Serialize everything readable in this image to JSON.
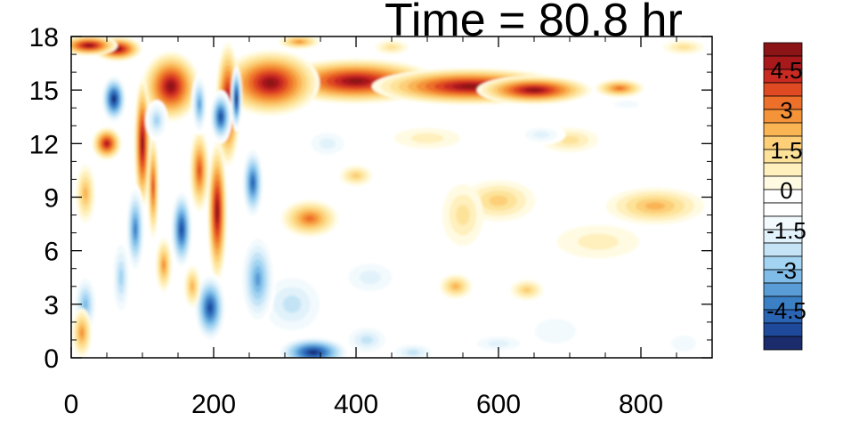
{
  "chart_data": {
    "type": "heatmap",
    "title": "Time = 80.8 hr",
    "xlabel": "",
    "ylabel": "",
    "xlim": [
      0,
      900
    ],
    "ylim": [
      0,
      18
    ],
    "x_ticks": [
      0,
      200,
      400,
      600,
      800
    ],
    "y_ticks": [
      0,
      3,
      6,
      9,
      12,
      15,
      18
    ],
    "x_tick_labels": [
      "0",
      "200",
      "400",
      "600",
      "800"
    ],
    "y_tick_labels": [
      "0",
      "3",
      "6",
      "9",
      "12",
      "15",
      "18"
    ],
    "colorbar": {
      "levels": [
        -5.5,
        -5,
        -4.5,
        -4,
        -3.5,
        -3,
        -2.5,
        -2,
        -1.5,
        -1,
        -0.5,
        0,
        0.5,
        1,
        1.5,
        2,
        2.5,
        3,
        3.5,
        4,
        4.5,
        5,
        5.5
      ],
      "colors": [
        "#1a2c6b",
        "#1f4a9c",
        "#2a64b4",
        "#3b7fc4",
        "#5a9cd6",
        "#7fbde8",
        "#a3d4f2",
        "#c4e4f6",
        "#e2f2fb",
        "#f3fafd",
        "#ffffff",
        "#ffffff",
        "#fffbe3",
        "#fff0be",
        "#fde39a",
        "#fccf78",
        "#f9b454",
        "#f49338",
        "#ec7029",
        "#df4a22",
        "#c92a22",
        "#a8191c",
        "#8a1416"
      ],
      "labels": [
        "4.5",
        "3",
        "1.5",
        "0",
        "-1.5",
        "-3",
        "-4.5"
      ],
      "label_values": [
        4.5,
        3,
        1.5,
        0,
        -1.5,
        -3,
        -4.5
      ]
    },
    "features": [
      {
        "value": 5.5,
        "x": 650,
        "y": 15,
        "sx": 70,
        "sy": 0.7
      },
      {
        "value": 5.5,
        "x": 560,
        "y": 15.2,
        "sx": 120,
        "sy": 0.9
      },
      {
        "value": 5.5,
        "x": 400,
        "y": 15.5,
        "sx": 100,
        "sy": 1.1
      },
      {
        "value": 5.5,
        "x": 280,
        "y": 15.4,
        "sx": 60,
        "sy": 1.6
      },
      {
        "value": 5.5,
        "x": 25,
        "y": 17.5,
        "sx": 35,
        "sy": 0.5
      },
      {
        "value": 5.5,
        "x": 65,
        "y": 17.3,
        "sx": 30,
        "sy": 0.6
      },
      {
        "value": 5.5,
        "x": 140,
        "y": 15.2,
        "sx": 35,
        "sy": 1.7
      },
      {
        "value": 5.5,
        "x": 100,
        "y": 12,
        "sx": 10,
        "sy": 3.2
      },
      {
        "value": 5.5,
        "x": 220,
        "y": 14.2,
        "sx": 15,
        "sy": 3.0
      },
      {
        "value": 5.5,
        "x": 205,
        "y": 8.2,
        "sx": 12,
        "sy": 3.4
      },
      {
        "value": 5.0,
        "x": 50,
        "y": 12,
        "sx": 18,
        "sy": 0.8
      },
      {
        "value": 4.0,
        "x": 180,
        "y": 10.5,
        "sx": 12,
        "sy": 2.0
      },
      {
        "value": 4.0,
        "x": 115,
        "y": 9.6,
        "sx": 7,
        "sy": 2.5
      },
      {
        "value": 3.5,
        "x": 770,
        "y": 15.1,
        "sx": 30,
        "sy": 0.45
      },
      {
        "value": 3.5,
        "x": 335,
        "y": 7.8,
        "sx": 35,
        "sy": 0.9
      },
      {
        "value": 3.0,
        "x": 320,
        "y": 17.7,
        "sx": 25,
        "sy": 0.35
      },
      {
        "value": 3.0,
        "x": 15,
        "y": 1.4,
        "sx": 12,
        "sy": 1.2
      },
      {
        "value": 3.0,
        "x": 130,
        "y": 5.2,
        "sx": 10,
        "sy": 1.3
      },
      {
        "value": 2.5,
        "x": 20,
        "y": 9.2,
        "sx": 12,
        "sy": 1.4
      },
      {
        "value": 2.5,
        "x": 170,
        "y": 4.0,
        "sx": 10,
        "sy": 1.0
      },
      {
        "value": 2.5,
        "x": 540,
        "y": 4.0,
        "sx": 20,
        "sy": 0.6
      },
      {
        "value": 2.5,
        "x": 820,
        "y": 8.5,
        "sx": 60,
        "sy": 0.9
      },
      {
        "value": 2.0,
        "x": 600,
        "y": 8.8,
        "sx": 45,
        "sy": 1.0
      },
      {
        "value": 2.0,
        "x": 400,
        "y": 10.2,
        "sx": 20,
        "sy": 0.5
      },
      {
        "value": 2.0,
        "x": 640,
        "y": 3.8,
        "sx": 20,
        "sy": 0.5
      },
      {
        "value": 1.5,
        "x": 550,
        "y": 8.0,
        "sx": 25,
        "sy": 1.5
      },
      {
        "value": 1.5,
        "x": 700,
        "y": 12.2,
        "sx": 35,
        "sy": 0.6
      },
      {
        "value": 1.5,
        "x": 860,
        "y": 17.4,
        "sx": 25,
        "sy": 0.35
      },
      {
        "value": 1.5,
        "x": 450,
        "y": 17.4,
        "sx": 20,
        "sy": 0.35
      },
      {
        "value": 1.0,
        "x": 740,
        "y": 6.5,
        "sx": 50,
        "sy": 0.8
      },
      {
        "value": 1.0,
        "x": 500,
        "y": 12.3,
        "sx": 40,
        "sy": 0.5
      },
      {
        "value": -5.5,
        "x": 60,
        "y": 14.5,
        "sx": 16,
        "sy": 1.2
      },
      {
        "value": -5.0,
        "x": 210,
        "y": 13.5,
        "sx": 14,
        "sy": 1.3
      },
      {
        "value": -5.5,
        "x": 232,
        "y": 14.5,
        "sx": 7,
        "sy": 1.6
      },
      {
        "value": -5.0,
        "x": 155,
        "y": 7.2,
        "sx": 14,
        "sy": 2.0
      },
      {
        "value": -4.0,
        "x": 90,
        "y": 7.2,
        "sx": 12,
        "sy": 2.2
      },
      {
        "value": -5.0,
        "x": 195,
        "y": 2.8,
        "sx": 20,
        "sy": 1.7
      },
      {
        "value": -5.5,
        "x": 340,
        "y": 0.3,
        "sx": 45,
        "sy": 0.8
      },
      {
        "value": -4.5,
        "x": 255,
        "y": 9.8,
        "sx": 14,
        "sy": 1.8
      },
      {
        "value": -3.5,
        "x": 262,
        "y": 4.4,
        "sx": 22,
        "sy": 2.3
      },
      {
        "value": -3.5,
        "x": 180,
        "y": 14.2,
        "sx": 10,
        "sy": 1.5
      },
      {
        "value": -3.0,
        "x": 20,
        "y": 3.0,
        "sx": 15,
        "sy": 1.5
      },
      {
        "value": -2.5,
        "x": 70,
        "y": 4.5,
        "sx": 12,
        "sy": 2.0
      },
      {
        "value": -2.5,
        "x": 120,
        "y": 13.3,
        "sx": 14,
        "sy": 1.0
      },
      {
        "value": -2.0,
        "x": 310,
        "y": 3.0,
        "sx": 45,
        "sy": 1.7
      },
      {
        "value": -2.0,
        "x": 415,
        "y": 1.0,
        "sx": 30,
        "sy": 0.8
      },
      {
        "value": -2.0,
        "x": 480,
        "y": 0.3,
        "sx": 30,
        "sy": 0.5
      },
      {
        "value": -1.5,
        "x": 420,
        "y": 4.5,
        "sx": 40,
        "sy": 1.0
      },
      {
        "value": -1.5,
        "x": 360,
        "y": 12.0,
        "sx": 30,
        "sy": 0.8
      },
      {
        "value": -1.5,
        "x": 600,
        "y": 0.8,
        "sx": 40,
        "sy": 0.5
      },
      {
        "value": -1.5,
        "x": 660,
        "y": 12.5,
        "sx": 30,
        "sy": 0.5
      },
      {
        "value": -1.0,
        "x": 520,
        "y": 12.2,
        "sx": 35,
        "sy": 0.6
      },
      {
        "value": -1.0,
        "x": 680,
        "y": 1.5,
        "sx": 50,
        "sy": 1.2
      },
      {
        "value": -1.0,
        "x": 860,
        "y": 0.8,
        "sx": 30,
        "sy": 0.8
      },
      {
        "value": -1.0,
        "x": 780,
        "y": 14.2,
        "sx": 30,
        "sy": 0.35
      }
    ]
  }
}
